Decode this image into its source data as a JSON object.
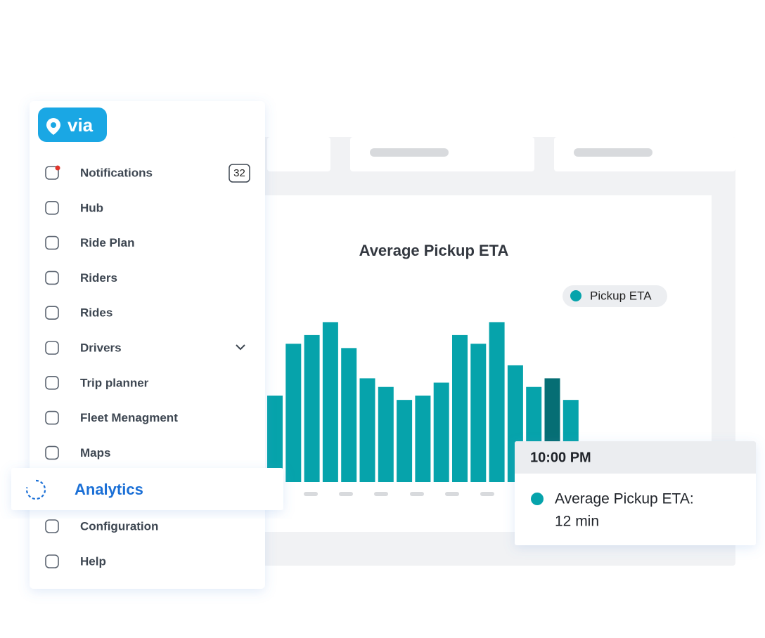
{
  "logo": "via",
  "sidebar": {
    "notifications_badge": 32,
    "items": [
      "Notifications",
      "Hub",
      "Ride Plan",
      "Riders",
      "Rides",
      "Drivers",
      "Trip planner",
      "Fleet Menagment",
      "Maps",
      "Analytics",
      "Configuration",
      "Help"
    ],
    "active_index": 9
  },
  "chart_data": {
    "type": "bar",
    "title": "Average Pickup ETA",
    "series": [
      {
        "name": "Pickup ETA",
        "color": "#06a3ab",
        "values": [
          10,
          16,
          17,
          18.5,
          15.5,
          12,
          11,
          9.5,
          10,
          11.5,
          17,
          16,
          18.5,
          13.5,
          11,
          12,
          9.5
        ]
      }
    ],
    "highlight_index": 15,
    "highlight_color": "#066e74",
    "ylim": [
      0,
      20
    ]
  },
  "tooltip": {
    "title": "10:00 PM",
    "label": "Average Pickup ETA:",
    "value": "12 min"
  }
}
